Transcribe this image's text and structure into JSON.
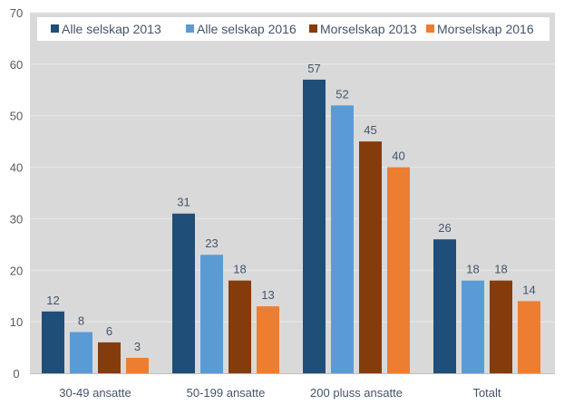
{
  "chart_data": {
    "type": "bar",
    "title": "",
    "xlabel": "",
    "ylabel": "",
    "ylim": [
      0,
      70
    ],
    "yticks": [
      0,
      10,
      20,
      30,
      40,
      50,
      60,
      70
    ],
    "grid": true,
    "legend_position": "top",
    "categories": [
      "30-49 ansatte",
      "50-199 ansatte",
      "200 pluss ansatte",
      "Totalt"
    ],
    "series": [
      {
        "name": "Alle selskap 2013",
        "color": "#1f4e79",
        "values": [
          12,
          31,
          57,
          26
        ]
      },
      {
        "name": "Alle selskap 2016",
        "color": "#5b9bd5",
        "values": [
          8,
          23,
          52,
          18
        ]
      },
      {
        "name": "Morselskap 2013",
        "color": "#843c0c",
        "values": [
          6,
          18,
          45,
          18
        ]
      },
      {
        "name": "Morselskap 2016",
        "color": "#ed7d31",
        "values": [
          3,
          13,
          40,
          14
        ]
      }
    ]
  }
}
